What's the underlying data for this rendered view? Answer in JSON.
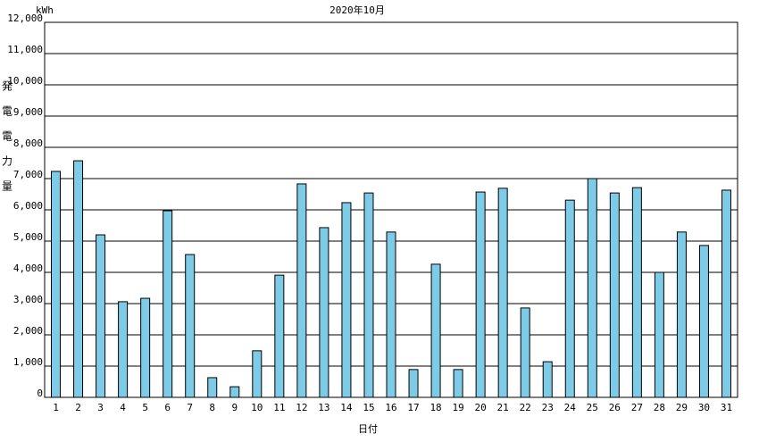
{
  "chart_data": {
    "type": "bar",
    "title": "2020年10月",
    "y_unit": "kWh",
    "y_label": "発電電力量",
    "x_label": "日付",
    "categories": [
      "1",
      "2",
      "3",
      "4",
      "5",
      "6",
      "7",
      "8",
      "9",
      "10",
      "11",
      "12",
      "13",
      "14",
      "15",
      "16",
      "17",
      "18",
      "19",
      "20",
      "21",
      "22",
      "23",
      "24",
      "25",
      "26",
      "27",
      "28",
      "29",
      "30",
      "31"
    ],
    "values": [
      7230,
      7570,
      5200,
      3060,
      3170,
      5970,
      4570,
      630,
      340,
      1490,
      3910,
      6830,
      5430,
      6230,
      6540,
      5290,
      890,
      4260,
      890,
      6570,
      6690,
      2860,
      1140,
      6310,
      7000,
      6540,
      6710,
      4000,
      5290,
      4860,
      6630
    ],
    "color": "#7ecbe8",
    "ylim": [
      0,
      12000
    ],
    "yticks": [
      0,
      {
        "value": 1000,
        "label": "1,000"
      },
      {
        "value": 2000,
        "label": "2,000"
      },
      {
        "value": 3000,
        "label": "3,000"
      },
      {
        "value": 4000,
        "label": "4,000"
      },
      {
        "value": 5000,
        "label": "5,000"
      },
      {
        "value": 6000,
        "label": "6,000"
      },
      {
        "value": 7000,
        "label": "7,000"
      },
      {
        "value": 8000,
        "label": "8,000"
      },
      {
        "value": 9000,
        "label": "9,000"
      },
      {
        "value": 10000,
        "label": "10,000"
      },
      {
        "value": 11000,
        "label": "11,000"
      },
      {
        "value": 12000,
        "label": "12,000"
      }
    ],
    "grid": true
  }
}
